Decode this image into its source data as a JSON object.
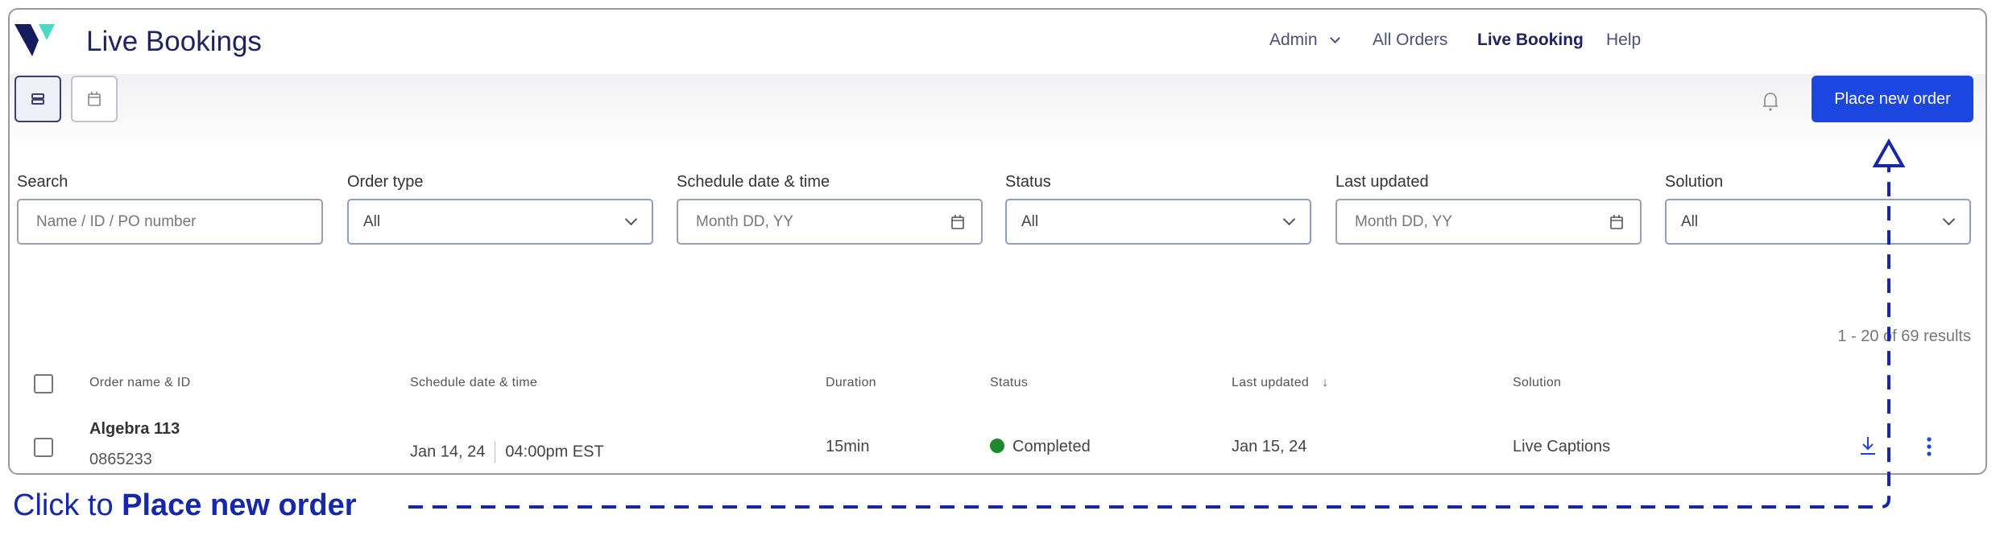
{
  "header": {
    "title": "Live Bookings",
    "nav": [
      {
        "label": "Admin",
        "has_dropdown": true
      },
      {
        "label": "All Orders"
      },
      {
        "label": "Live Booking",
        "active": true
      },
      {
        "label": "Help"
      }
    ]
  },
  "toolbar": {
    "view_list": "list-view-icon",
    "view_calendar": "calendar-view-icon",
    "bell": "bell-icon",
    "place_new_order": "Place new order"
  },
  "filters": [
    {
      "label": "Search",
      "placeholder": "Name / ID / PO number"
    },
    {
      "label": "Order type",
      "value": "All"
    },
    {
      "label": "Schedule date & time",
      "placeholder": "Month DD, YY"
    },
    {
      "label": "Status",
      "value": "All"
    },
    {
      "label": "Last updated",
      "placeholder": "Month DD, YY"
    },
    {
      "label": "Solution",
      "value": "All"
    }
  ],
  "results": "1 - 20 of 69 results",
  "table": {
    "headers": [
      "Order name & ID",
      "Schedule date & time",
      "Duration",
      "Status",
      "Last updated",
      "Solution"
    ],
    "rows": [
      {
        "name": "Algebra 113",
        "id": "0865233",
        "date": "Jan 14, 24",
        "time": "04:00pm EST",
        "duration": "15min",
        "status": "Completed",
        "status_color": "#1e8a2e",
        "last_updated": "Jan 15, 24",
        "solution": "Live Captions"
      }
    ]
  },
  "annotation": {
    "prefix": "Click to ",
    "bold": "Place new order",
    "color": "#1428a8"
  },
  "colors": {
    "accent": "#1c46e0",
    "brand": "#1f2360",
    "brand_teal": "#4fd8c4"
  }
}
